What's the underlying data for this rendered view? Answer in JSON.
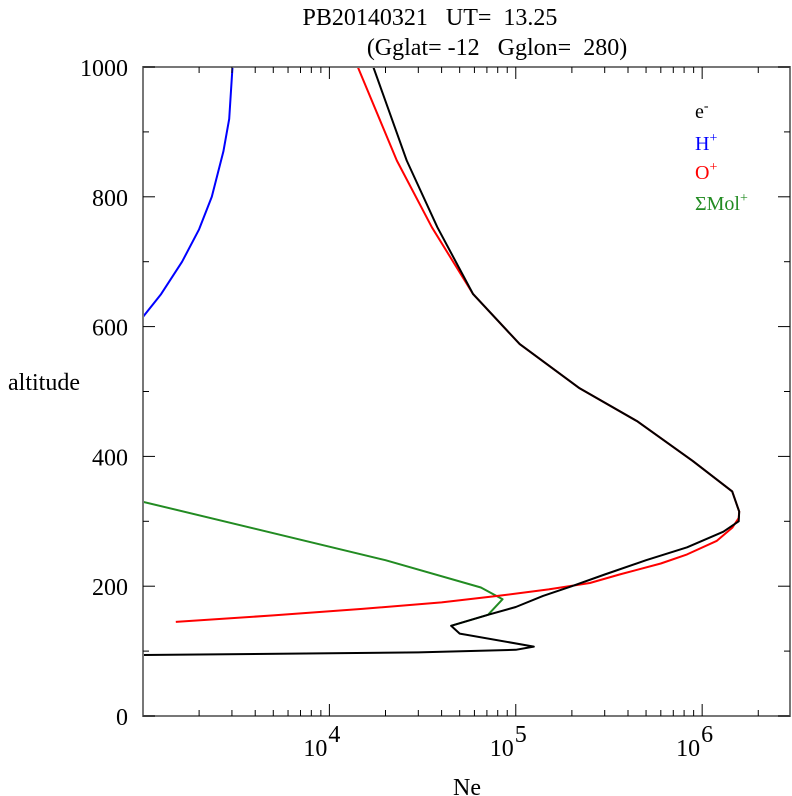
{
  "chart_data": {
    "type": "line",
    "title": "PB20140321   UT=  13.25",
    "subtitle": "(Gglat= -12   Gglon=  280)",
    "xlabel": "Ne",
    "ylabel": "altitude",
    "xscale": "log",
    "xlim": [
      1000,
      2960000
    ],
    "ylim": [
      0,
      1000
    ],
    "x_ticks": [
      {
        "value": 10000,
        "base": "10",
        "exp": "4"
      },
      {
        "value": 100000,
        "base": "10",
        "exp": "5"
      },
      {
        "value": 1000000,
        "base": "10",
        "exp": "6"
      }
    ],
    "y_ticks": [
      0,
      200,
      400,
      600,
      800,
      1000
    ],
    "y_minor_ticks": [
      100,
      300,
      500,
      700,
      900
    ],
    "grid": false,
    "legend_position": "top-right",
    "series": [
      {
        "name": "e-",
        "label_base": "e",
        "label_sup": "-",
        "color": "#000000",
        "points": [
          [
            1000,
            94
          ],
          [
            30000,
            98
          ],
          [
            100000,
            102
          ],
          [
            125000,
            107
          ],
          [
            50000,
            127
          ],
          [
            45000,
            139
          ],
          [
            71000,
            156
          ],
          [
            100000,
            168
          ],
          [
            140000,
            185
          ],
          [
            200000,
            200
          ],
          [
            300000,
            218
          ],
          [
            500000,
            240
          ],
          [
            830000,
            260
          ],
          [
            1300000,
            284
          ],
          [
            1570000,
            300
          ],
          [
            1580000,
            315
          ],
          [
            1450000,
            346
          ],
          [
            890000,
            393
          ],
          [
            450000,
            454
          ],
          [
            220000,
            505
          ],
          [
            105000,
            573
          ],
          [
            59000,
            650
          ],
          [
            38000,
            753
          ],
          [
            26000,
            856
          ],
          [
            17200,
            1000
          ]
        ]
      },
      {
        "name": "H+",
        "label_base": "H",
        "label_sup": "+",
        "color": "#0000ff",
        "points": [
          [
            1000,
            615
          ],
          [
            1250,
            650
          ],
          [
            1620,
            700
          ],
          [
            2000,
            750
          ],
          [
            2340,
            800
          ],
          [
            2700,
            870
          ],
          [
            2900,
            920
          ],
          [
            3020,
            1000
          ]
        ]
      },
      {
        "name": "O+",
        "label_base": "O",
        "label_sup": "+",
        "color": "#ff0000",
        "points": [
          [
            1500,
            145
          ],
          [
            5000,
            155
          ],
          [
            15000,
            165
          ],
          [
            40000,
            175
          ],
          [
            80000,
            185
          ],
          [
            150000,
            195
          ],
          [
            250000,
            205
          ],
          [
            360000,
            218
          ],
          [
            600000,
            235
          ],
          [
            830000,
            249
          ],
          [
            1200000,
            270
          ],
          [
            1450000,
            290
          ],
          [
            1570000,
            305
          ],
          [
            1580000,
            315
          ],
          [
            1450000,
            346
          ],
          [
            890000,
            393
          ],
          [
            450000,
            454
          ],
          [
            220000,
            505
          ],
          [
            105000,
            573
          ],
          [
            59000,
            650
          ],
          [
            35500,
            753
          ],
          [
            23000,
            856
          ],
          [
            14200,
            1000
          ]
        ]
      },
      {
        "name": "ΣMol+",
        "label_base": "ΣMol",
        "label_sup": "+",
        "color": "#228b22",
        "points": [
          [
            1000,
            330
          ],
          [
            20000,
            240
          ],
          [
            65000,
            198
          ],
          [
            85000,
            180
          ],
          [
            71000,
            156
          ],
          [
            45000,
            139
          ]
        ]
      }
    ]
  }
}
